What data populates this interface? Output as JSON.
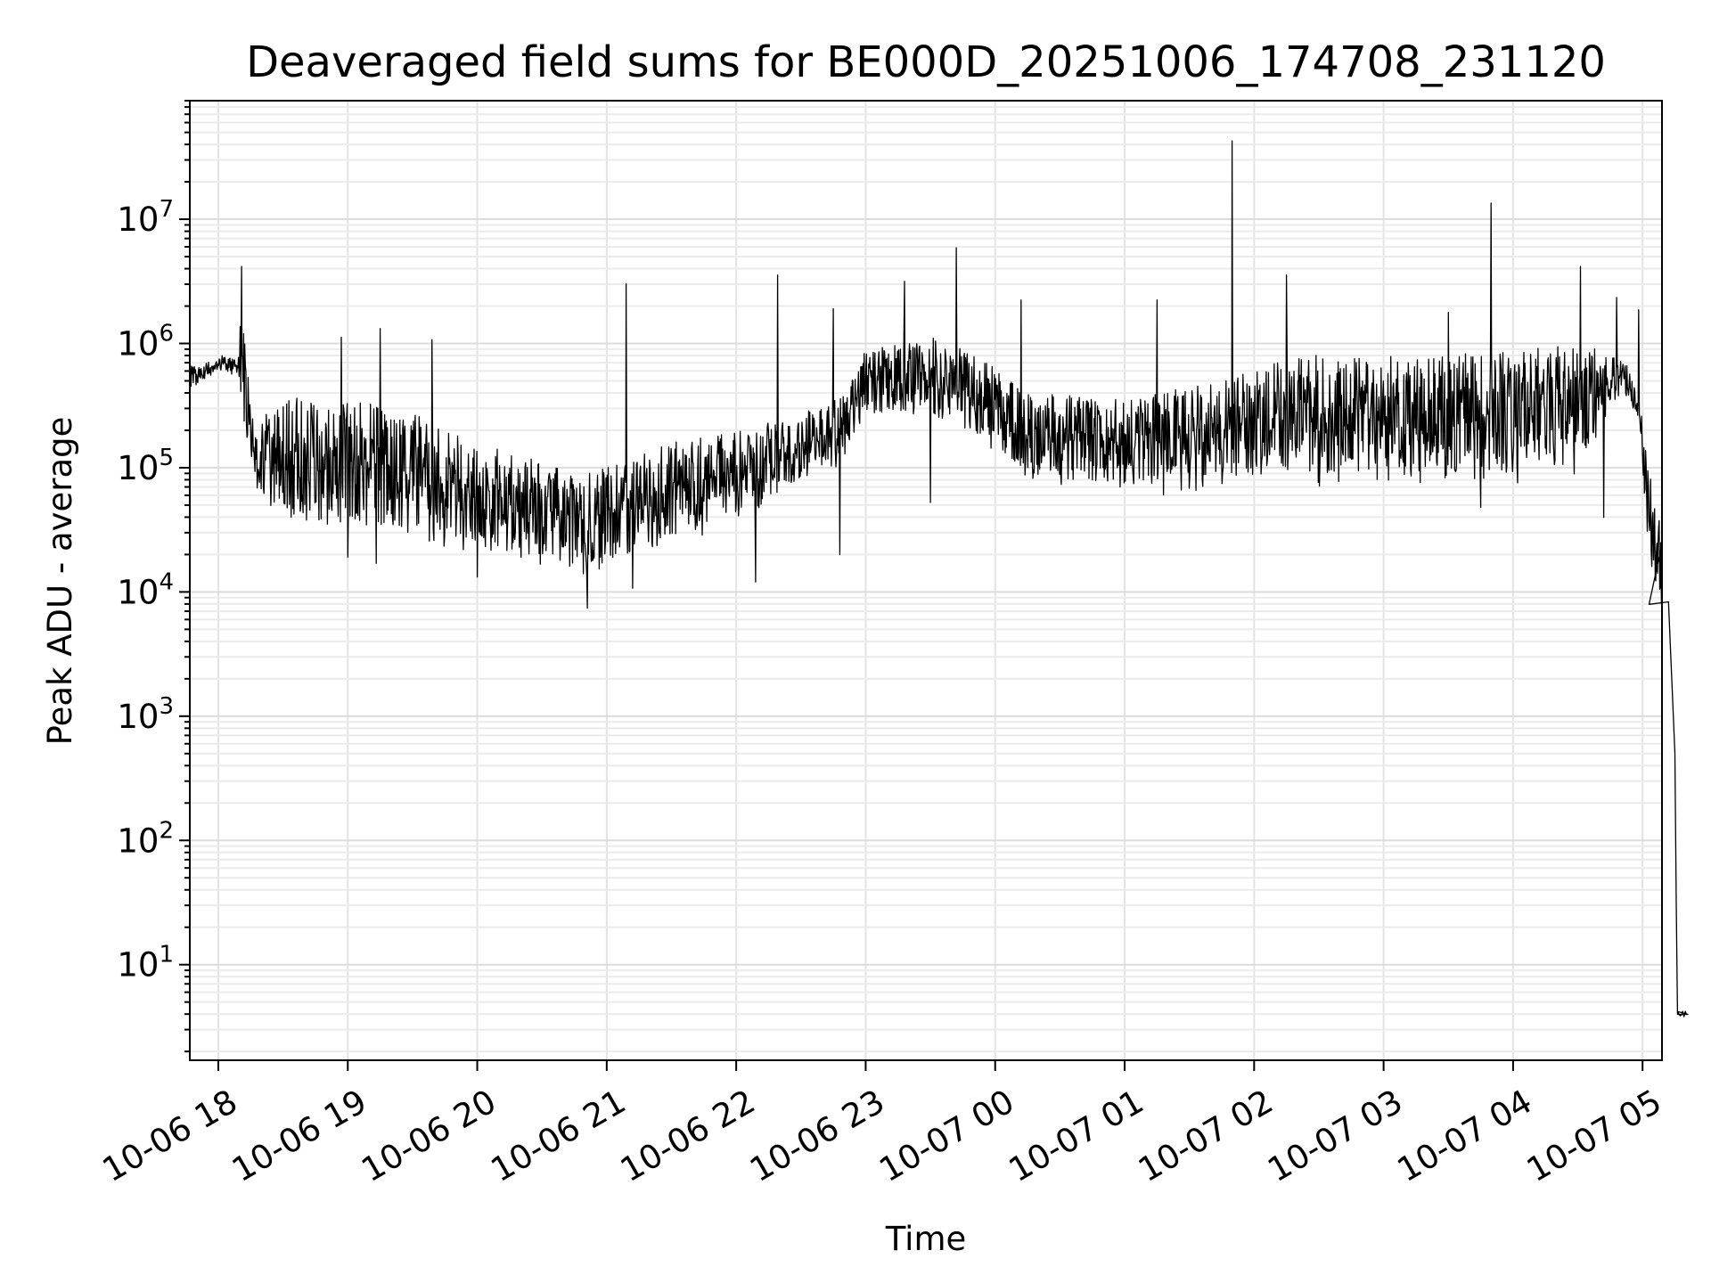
{
  "chart_data": {
    "type": "line",
    "title": "Deaveraged field sums for BE000D_20251006_174708_231120",
    "xlabel": "Time",
    "ylabel": "Peak ADU - average",
    "yscale": "log",
    "ylim": [
      1.7,
      90000000
    ],
    "xlim_hours": [
      17.78,
      29.15
    ],
    "grid": true,
    "line_color": "#000000",
    "x_ticks": [
      {
        "hour": 18,
        "label": "10-06 18"
      },
      {
        "hour": 19,
        "label": "10-06 19"
      },
      {
        "hour": 20,
        "label": "10-06 20"
      },
      {
        "hour": 21,
        "label": "10-06 21"
      },
      {
        "hour": 22,
        "label": "10-06 22"
      },
      {
        "hour": 23,
        "label": "10-06 23"
      },
      {
        "hour": 24,
        "label": "10-07 00"
      },
      {
        "hour": 25,
        "label": "10-07 01"
      },
      {
        "hour": 26,
        "label": "10-07 02"
      },
      {
        "hour": 27,
        "label": "10-07 03"
      },
      {
        "hour": 28,
        "label": "10-07 04"
      },
      {
        "hour": 29,
        "label": "10-07 05"
      }
    ],
    "y_ticks": [
      {
        "value": 10,
        "base": "10",
        "exp": "1"
      },
      {
        "value": 100,
        "base": "10",
        "exp": "2"
      },
      {
        "value": 1000,
        "base": "10",
        "exp": "3"
      },
      {
        "value": 10000,
        "base": "10",
        "exp": "4"
      },
      {
        "value": 100000,
        "base": "10",
        "exp": "5"
      },
      {
        "value": 1000000,
        "base": "10",
        "exp": "6"
      },
      {
        "value": 10000000,
        "base": "10",
        "exp": "7"
      }
    ],
    "series": [
      {
        "name": "Peak ADU - average",
        "description": "Approximate envelope of the dense trace (log10 of low / high per time point)",
        "trend": [
          [
            17.78,
            5.62,
            5.85
          ],
          [
            17.9,
            5.7,
            5.84
          ],
          [
            18.05,
            5.78,
            5.92
          ],
          [
            18.15,
            5.7,
            5.85
          ],
          [
            18.18,
            5.4,
            6.6
          ],
          [
            18.25,
            4.95,
            5.4
          ],
          [
            18.4,
            4.55,
            5.55
          ],
          [
            18.7,
            4.45,
            5.6
          ],
          [
            19.0,
            4.45,
            5.55
          ],
          [
            19.5,
            4.35,
            5.45
          ],
          [
            20.0,
            4.25,
            5.2
          ],
          [
            20.5,
            4.2,
            5.05
          ],
          [
            20.85,
            4.1,
            4.95
          ],
          [
            21.0,
            4.15,
            5.0
          ],
          [
            21.5,
            4.35,
            5.2
          ],
          [
            22.0,
            4.55,
            5.3
          ],
          [
            22.5,
            4.85,
            5.45
          ],
          [
            22.85,
            5.05,
            5.6
          ],
          [
            23.0,
            5.4,
            5.95
          ],
          [
            23.5,
            5.35,
            6.05
          ],
          [
            23.7,
            5.3,
            6.0
          ],
          [
            24.0,
            5.1,
            5.8
          ],
          [
            24.3,
            4.85,
            5.6
          ],
          [
            25.0,
            4.8,
            5.55
          ],
          [
            25.5,
            4.8,
            5.65
          ],
          [
            26.0,
            4.85,
            5.8
          ],
          [
            26.5,
            4.85,
            5.92
          ],
          [
            27.0,
            4.85,
            5.92
          ],
          [
            27.5,
            4.85,
            5.92
          ],
          [
            28.0,
            4.85,
            5.95
          ],
          [
            28.5,
            4.9,
            6.0
          ],
          [
            28.85,
            5.6,
            5.9
          ],
          [
            28.97,
            5.4,
            5.6
          ],
          [
            29.05,
            4.2,
            5.0
          ],
          [
            29.12,
            3.9,
            4.6
          ],
          [
            29.15,
            3.9,
            4.6
          ]
        ],
        "spikes": [
          [
            18.18,
            6.62
          ],
          [
            18.95,
            6.05
          ],
          [
            19.25,
            6.12
          ],
          [
            19.65,
            6.03
          ],
          [
            21.15,
            6.48
          ],
          [
            22.32,
            6.55
          ],
          [
            22.75,
            6.28
          ],
          [
            23.3,
            6.5
          ],
          [
            23.7,
            6.77
          ],
          [
            24.2,
            6.35
          ],
          [
            25.25,
            6.35
          ],
          [
            25.83,
            7.63
          ],
          [
            26.25,
            6.55
          ],
          [
            27.5,
            6.25
          ],
          [
            27.83,
            7.13
          ],
          [
            28.52,
            6.62
          ],
          [
            28.8,
            6.37
          ],
          [
            28.97,
            6.27
          ]
        ],
        "dips": [
          [
            19.0,
            4.28
          ],
          [
            19.22,
            4.23
          ],
          [
            20.0,
            4.12
          ],
          [
            20.85,
            3.87
          ],
          [
            21.2,
            4.03
          ],
          [
            22.15,
            4.08
          ],
          [
            22.8,
            4.3
          ],
          [
            23.5,
            4.72
          ],
          [
            25.3,
            4.78
          ],
          [
            27.75,
            4.68
          ],
          [
            28.7,
            4.6
          ]
        ],
        "tail": [
          [
            29.05,
            3.9
          ],
          [
            29.2,
            3.92
          ],
          [
            29.25,
            2.7
          ],
          [
            29.26,
            1.5
          ],
          [
            29.27,
            0.6
          ],
          [
            29.35,
            0.6
          ]
        ]
      }
    ]
  }
}
